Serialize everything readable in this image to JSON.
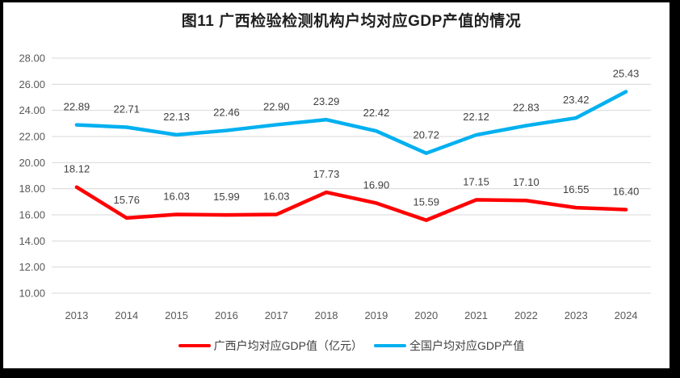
{
  "title": "图11 广西检验检测机构户均对应GDP产值的情况",
  "chart_data": {
    "type": "line",
    "x": [
      "2013",
      "2014",
      "2015",
      "2016",
      "2017",
      "2018",
      "2019",
      "2020",
      "2021",
      "2022",
      "2023",
      "2024"
    ],
    "series": [
      {
        "id": "guangxi",
        "name": "广西户均对应GDP值（亿元）",
        "color": "#FF0000",
        "values": [
          18.12,
          15.76,
          16.03,
          15.99,
          16.03,
          17.73,
          16.9,
          15.59,
          17.15,
          17.1,
          16.55,
          16.4
        ],
        "labels": [
          "18.12",
          "15.76",
          "16.03",
          "15.99",
          "16.03",
          "17.73",
          "16.90",
          "15.59",
          "17.15",
          "17.10",
          "16.55",
          "16.40"
        ]
      },
      {
        "id": "national",
        "name": "全国户均对应GDP产值",
        "color": "#00B0F0",
        "values": [
          22.89,
          22.71,
          22.13,
          22.46,
          22.9,
          23.29,
          22.42,
          20.72,
          22.12,
          22.83,
          23.42,
          25.43
        ],
        "labels": [
          "22.89",
          "22.71",
          "22.13",
          "22.46",
          "22.90",
          "23.29",
          "22.42",
          "20.72",
          "22.12",
          "22.83",
          "23.42",
          "25.43"
        ]
      }
    ],
    "ylim": [
      10,
      28
    ],
    "ytick_labels": [
      "10.00",
      "12.00",
      "14.00",
      "16.00",
      "18.00",
      "20.00",
      "22.00",
      "24.00",
      "26.00",
      "28.00"
    ],
    "grid": "horizontal",
    "data_labels": true,
    "legend_position": "bottom",
    "colors": {
      "gridline": "#D9D9D9",
      "axis_text": "#595959",
      "data_label_text": "#3F3F3F",
      "title_text": "#1F1F1F",
      "frame": "#000000"
    }
  }
}
